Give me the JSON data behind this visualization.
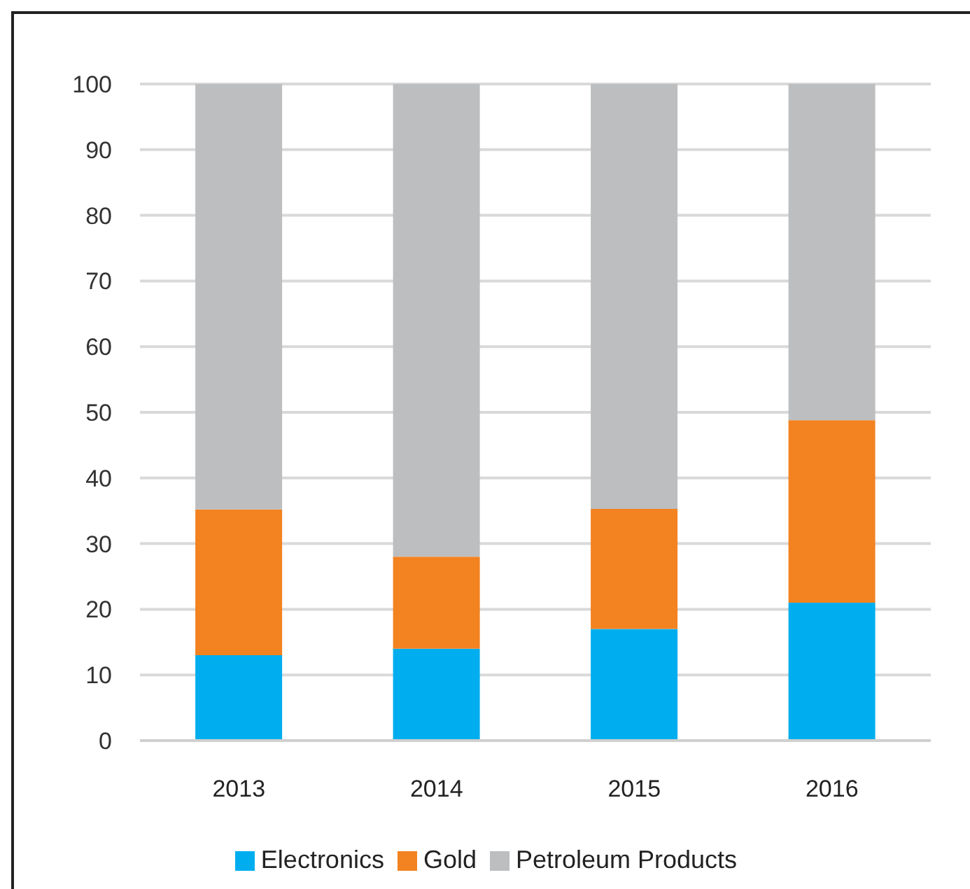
{
  "chart_data": {
    "type": "bar",
    "stacked": true,
    "categories": [
      "2013",
      "2014",
      "2015",
      "2016"
    ],
    "series": [
      {
        "name": "Electronics",
        "color": "#00aeef",
        "values": [
          13,
          14,
          17,
          21
        ]
      },
      {
        "name": "Gold",
        "color": "#f38220",
        "values": [
          22.2,
          14,
          18.3,
          27.8
        ]
      },
      {
        "name": "Petroleum Products",
        "color": "#bcbec0",
        "values": [
          64.8,
          72,
          64.7,
          51.2
        ]
      }
    ],
    "ylim": [
      0,
      100
    ],
    "yticks": [
      0,
      10,
      20,
      30,
      40,
      50,
      60,
      70,
      80,
      90,
      100
    ],
    "grid": "y",
    "legend": "bottom"
  }
}
